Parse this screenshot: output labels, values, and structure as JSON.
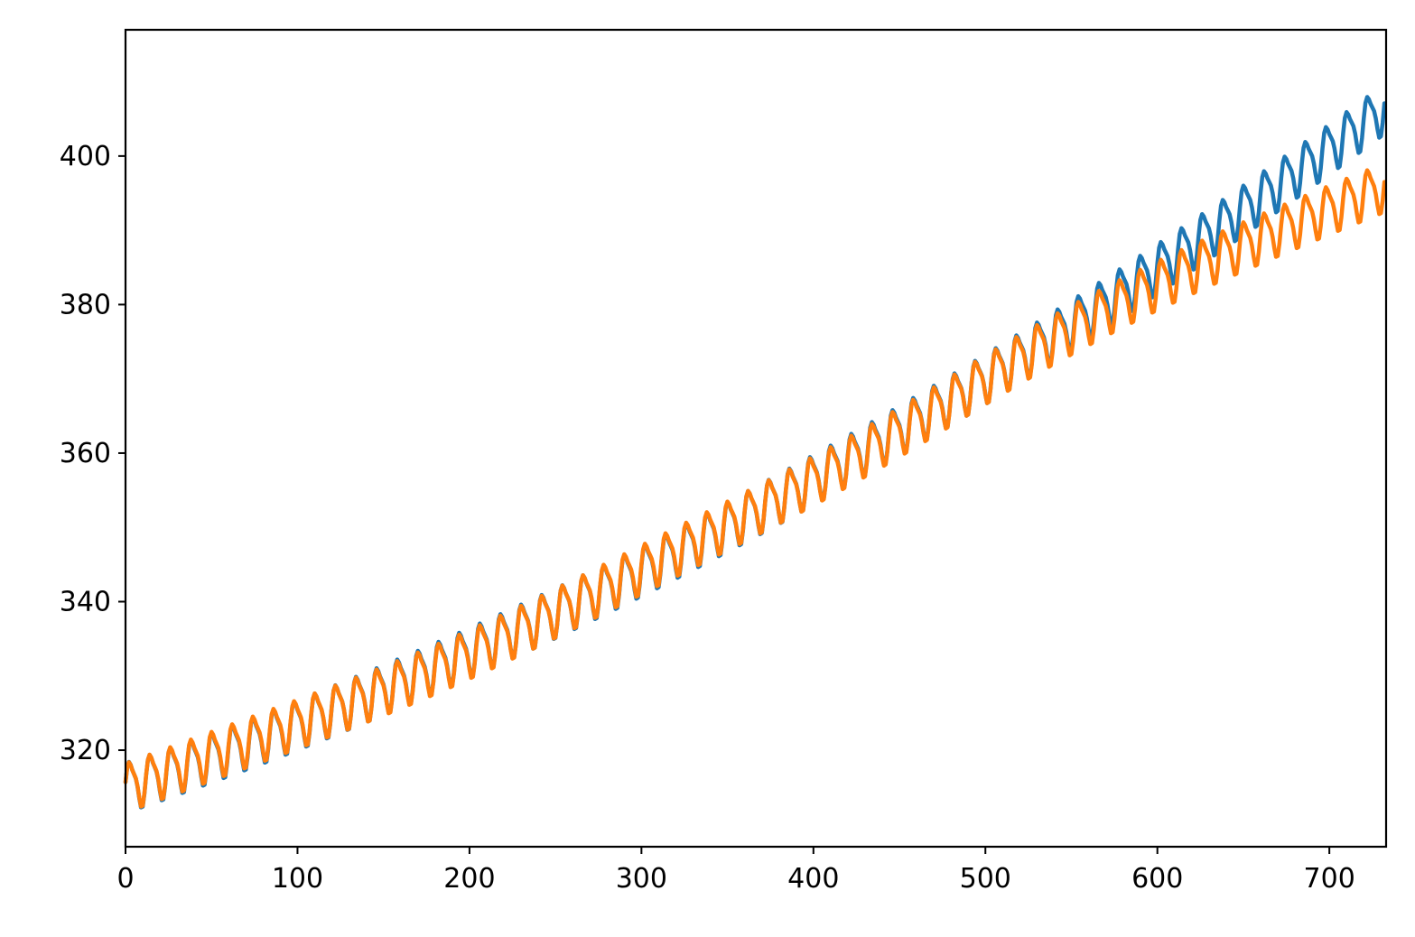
{
  "chart_data": {
    "type": "line",
    "title": "",
    "xlabel": "",
    "ylabel": "",
    "xlim": [
      0,
      733
    ],
    "ylim": [
      307,
      417
    ],
    "grid": false,
    "legend": "none",
    "x_ticks": [
      0,
      100,
      200,
      300,
      400,
      500,
      600,
      700
    ],
    "y_ticks": [
      320,
      340,
      360,
      380,
      400
    ],
    "series": [
      {
        "color": "#1f77b4",
        "sample_step": 1,
        "values": []
      },
      {
        "color": "#ff7f0e",
        "sample_step": 1,
        "values": []
      }
    ]
  }
}
